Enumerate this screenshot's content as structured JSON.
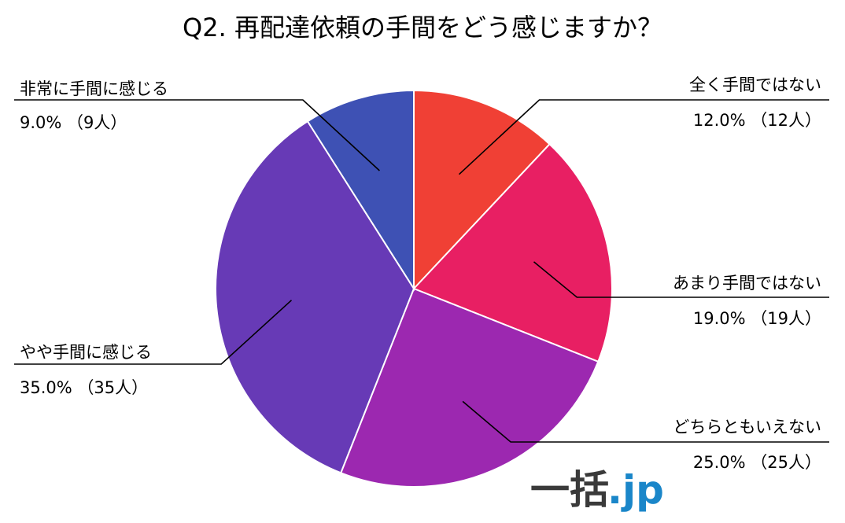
{
  "chart_data": {
    "type": "pie",
    "title": "Q2. 再配達依頼の手間をどう感じますか？",
    "slices": [
      {
        "label": "全く手間ではない",
        "value_text": "12.0% （12人）",
        "percent": 12.0,
        "count": 12,
        "color": "#F04035"
      },
      {
        "label": "あまり手間ではない",
        "value_text": "19.0% （19人）",
        "percent": 19.0,
        "count": 19,
        "color": "#E81F63"
      },
      {
        "label": "どちらともいえない",
        "value_text": "25.0% （25人）",
        "percent": 25.0,
        "count": 25,
        "color": "#9C28B0"
      },
      {
        "label": "やや手間に感じる",
        "value_text": "35.0% （35人）",
        "percent": 35.0,
        "count": 35,
        "color": "#673AB6"
      },
      {
        "label": "非常に手間に感じる",
        "value_text": "9.0% （9人）",
        "percent": 9.0,
        "count": 9,
        "color": "#3E51B4"
      }
    ],
    "legend": "none"
  },
  "logo": {
    "main": "一括",
    "suffix": ".jp",
    "main_color": "#3a3a3a",
    "suffix_color": "#1a86c9"
  }
}
